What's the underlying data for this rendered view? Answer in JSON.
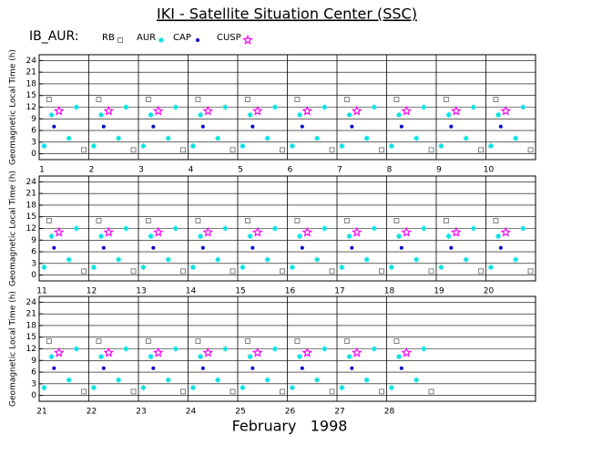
{
  "header": {
    "title": "IKI - Satellite Situation Center (SSC)",
    "label": "IB_AUR:"
  },
  "chart_data": [
    {
      "type": "scatter",
      "ylabel": "Geomagnetic Local Time (h)",
      "xlim": [
        1,
        11
      ],
      "ylim": [
        -1.5,
        25.5
      ],
      "xticks": [
        1,
        2,
        3,
        4,
        5,
        6,
        7,
        8,
        9,
        10
      ],
      "yticks": [
        0,
        3,
        6,
        9,
        12,
        15,
        18,
        21,
        24
      ],
      "grid": true,
      "series": [
        {
          "name": "RB",
          "color": "#808080",
          "marker": "square",
          "x": [
            1.2,
            1.9,
            2.2,
            2.9,
            3.2,
            3.9,
            4.2,
            4.9,
            5.2,
            5.9,
            6.2,
            6.9,
            7.2,
            7.9,
            8.2,
            8.9,
            9.2,
            9.9,
            10.2,
            10.9
          ],
          "values": [
            14,
            1,
            14,
            1,
            14,
            1,
            14,
            1,
            14,
            1,
            14,
            1,
            14,
            1,
            14,
            1,
            14,
            1,
            14,
            1
          ]
        },
        {
          "name": "AUR",
          "color": "#00e0e0",
          "marker": "asterisk",
          "x": [
            1.1,
            1.25,
            1.6,
            1.75,
            2.1,
            2.25,
            2.6,
            2.75,
            3.1,
            3.25,
            3.6,
            3.75,
            4.1,
            4.25,
            4.6,
            4.75,
            5.1,
            5.25,
            5.6,
            5.75,
            6.1,
            6.25,
            6.6,
            6.75,
            7.1,
            7.25,
            7.6,
            7.75,
            8.1,
            8.25,
            8.6,
            8.75,
            9.1,
            9.25,
            9.6,
            9.75,
            10.1,
            10.25,
            10.6,
            10.75
          ],
          "values": [
            2,
            10,
            4,
            12,
            2,
            10,
            4,
            12,
            2,
            10,
            4,
            12,
            2,
            10,
            4,
            12,
            2,
            10,
            4,
            12,
            2,
            10,
            4,
            12,
            2,
            10,
            4,
            12,
            2,
            10,
            4,
            12,
            2,
            10,
            4,
            12,
            2,
            10,
            4,
            12
          ]
        },
        {
          "name": "CAP",
          "color": "#0000cc",
          "marker": "dot",
          "x": [
            1.3,
            2.3,
            3.3,
            4.3,
            5.3,
            6.3,
            7.3,
            8.3,
            9.3,
            10.3
          ],
          "values": [
            7,
            7,
            7,
            7,
            7,
            7,
            7,
            7,
            7,
            7
          ]
        },
        {
          "name": "CUSP",
          "color": "#ff00ff",
          "marker": "star",
          "x": [
            1.4,
            2.4,
            3.4,
            4.4,
            5.4,
            6.4,
            7.4,
            8.4,
            9.4,
            10.4
          ],
          "values": [
            11,
            11,
            11,
            11,
            11,
            11,
            11,
            11,
            11,
            11
          ]
        }
      ]
    },
    {
      "type": "scatter",
      "ylabel": "Geomagnetic Local Time (h)",
      "xlim": [
        11,
        21
      ],
      "ylim": [
        -1.5,
        25.5
      ],
      "xticks": [
        11,
        12,
        13,
        14,
        15,
        16,
        17,
        18,
        19,
        20
      ],
      "yticks": [
        0,
        3,
        6,
        9,
        12,
        15,
        18,
        21,
        24
      ],
      "grid": true,
      "series": [
        {
          "name": "RB",
          "color": "#808080",
          "marker": "square",
          "x": [
            11.2,
            11.9,
            12.2,
            12.9,
            13.2,
            13.9,
            14.2,
            14.9,
            15.2,
            15.9,
            16.2,
            16.9,
            17.2,
            17.9,
            18.2,
            18.9,
            19.2,
            19.9,
            20.2,
            20.9
          ],
          "values": [
            14,
            1,
            14,
            1,
            14,
            1,
            14,
            1,
            14,
            1,
            14,
            1,
            14,
            1,
            14,
            1,
            14,
            1,
            14,
            1
          ]
        },
        {
          "name": "AUR",
          "color": "#00e0e0",
          "marker": "asterisk",
          "x": [
            11.1,
            11.25,
            11.6,
            11.75,
            12.1,
            12.25,
            12.6,
            12.75,
            13.1,
            13.25,
            13.6,
            13.75,
            14.1,
            14.25,
            14.6,
            14.75,
            15.1,
            15.25,
            15.6,
            15.75,
            16.1,
            16.25,
            16.6,
            16.75,
            17.1,
            17.25,
            17.6,
            17.75,
            18.1,
            18.25,
            18.6,
            18.75,
            19.1,
            19.25,
            19.6,
            19.75,
            20.1,
            20.25,
            20.6,
            20.75
          ],
          "values": [
            2,
            10,
            4,
            12,
            2,
            10,
            4,
            12,
            2,
            10,
            4,
            12,
            2,
            10,
            4,
            12,
            2,
            10,
            4,
            12,
            2,
            10,
            4,
            12,
            2,
            10,
            4,
            12,
            2,
            10,
            4,
            12,
            2,
            10,
            4,
            12,
            2,
            10,
            4,
            12
          ]
        },
        {
          "name": "CAP",
          "color": "#0000cc",
          "marker": "dot",
          "x": [
            11.3,
            12.3,
            13.3,
            14.3,
            15.3,
            16.3,
            17.3,
            18.3,
            19.3,
            20.3
          ],
          "values": [
            7,
            7,
            7,
            7,
            7,
            7,
            7,
            7,
            7,
            7
          ]
        },
        {
          "name": "CUSP",
          "color": "#ff00ff",
          "marker": "star",
          "x": [
            11.4,
            12.4,
            13.4,
            14.4,
            15.4,
            16.4,
            17.4,
            18.4,
            19.4,
            20.4
          ],
          "values": [
            11,
            11,
            11,
            11,
            11,
            11,
            11,
            11,
            11,
            11
          ]
        }
      ]
    },
    {
      "type": "scatter",
      "ylabel": "Geomagnetic Local Time (h)",
      "xlabel": "February   1998",
      "xlim": [
        21,
        31
      ],
      "ylim": [
        -1.5,
        25.5
      ],
      "xticks": [
        21,
        22,
        23,
        24,
        25,
        26,
        27,
        28
      ],
      "yticks": [
        0,
        3,
        6,
        9,
        12,
        15,
        18,
        21,
        24
      ],
      "grid": true,
      "series": [
        {
          "name": "RB",
          "color": "#808080",
          "marker": "square",
          "x": [
            21.2,
            21.9,
            22.2,
            22.9,
            23.2,
            23.9,
            24.2,
            24.9,
            25.2,
            25.9,
            26.2,
            26.9,
            27.2,
            27.9,
            28.2,
            28.9
          ],
          "values": [
            14,
            1,
            14,
            1,
            14,
            1,
            14,
            1,
            14,
            1,
            14,
            1,
            14,
            1,
            14,
            1
          ]
        },
        {
          "name": "AUR",
          "color": "#00e0e0",
          "marker": "asterisk",
          "x": [
            21.1,
            21.25,
            21.6,
            21.75,
            22.1,
            22.25,
            22.6,
            22.75,
            23.1,
            23.25,
            23.6,
            23.75,
            24.1,
            24.25,
            24.6,
            24.75,
            25.1,
            25.25,
            25.6,
            25.75,
            26.1,
            26.25,
            26.6,
            26.75,
            27.1,
            27.25,
            27.6,
            27.75,
            28.1,
            28.25,
            28.6,
            28.75
          ],
          "values": [
            2,
            10,
            4,
            12,
            2,
            10,
            4,
            12,
            2,
            10,
            4,
            12,
            2,
            10,
            4,
            12,
            2,
            10,
            4,
            12,
            2,
            10,
            4,
            12,
            2,
            10,
            4,
            12,
            2,
            10,
            4,
            12
          ]
        },
        {
          "name": "CAP",
          "color": "#0000cc",
          "marker": "dot",
          "x": [
            21.3,
            22.3,
            23.3,
            24.3,
            25.3,
            26.3,
            27.3,
            28.3
          ],
          "values": [
            7,
            7,
            7,
            7,
            7,
            7,
            7,
            7
          ]
        },
        {
          "name": "CUSP",
          "color": "#ff00ff",
          "marker": "star",
          "x": [
            21.4,
            22.4,
            23.4,
            24.4,
            25.4,
            26.4,
            27.4,
            28.4
          ],
          "values": [
            11,
            11,
            11,
            11,
            11,
            11,
            11,
            11
          ]
        }
      ]
    }
  ]
}
